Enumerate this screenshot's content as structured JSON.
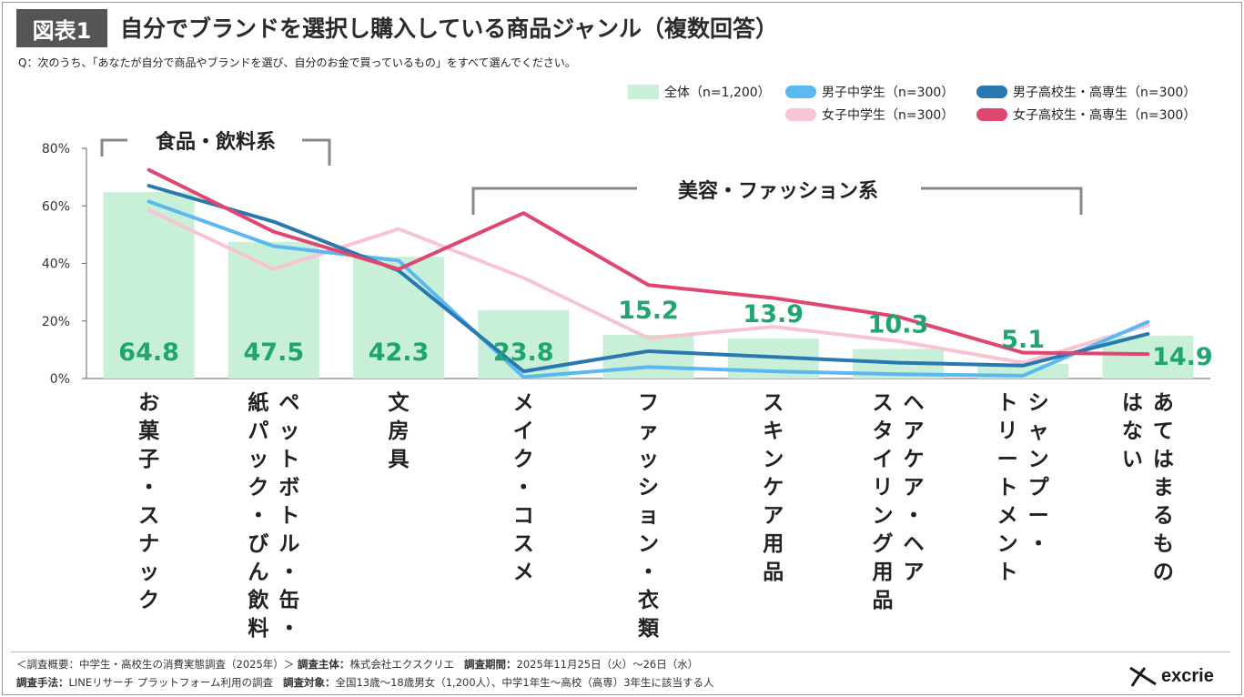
{
  "header": {
    "badge": "図表1",
    "title": "自分でブランドを選択し購入している商品ジャンル（複数回答）",
    "question": "Q：次のうち、「あなたが自分で商品やブランドを選び、自分のお金で買っているもの」をすべて選んでください。"
  },
  "groups": {
    "food": "食品・飲料系",
    "beauty": "美容・ファッション系"
  },
  "chart_data": {
    "type": "bar",
    "categories": [
      "お菓子・スナック",
      "ペットボトル・缶・紙パック・びん飲料",
      "文房具",
      "メイク・コスメ",
      "ファッション・衣類",
      "スキンケア用品",
      "ヘアケア・ヘアスタイリング用品",
      "シャンプー・トリートメント",
      "あてはまるものはない"
    ],
    "category_lines": [
      [
        "お菓子・スナック"
      ],
      [
        "ペットボトル・缶・",
        "紙パック・びん飲料"
      ],
      [
        "文房具"
      ],
      [
        "メイク・コスメ"
      ],
      [
        "ファッション・衣類"
      ],
      [
        "スキンケア用品"
      ],
      [
        "ヘアケア・ヘア",
        "スタイリング用品"
      ],
      [
        "シャンプー・",
        "トリートメント"
      ],
      [
        "あてはまるもの",
        "はない"
      ]
    ],
    "ylim": [
      0,
      80
    ],
    "yticks": [
      "0%",
      "20%",
      "40%",
      "60%",
      "80%"
    ],
    "bar_labels": [
      "64.8",
      "47.5",
      "42.3",
      "23.8",
      "15.2",
      "13.9",
      "10.3",
      "5.1",
      "14.9"
    ],
    "series": [
      {
        "name": "全体（n=1,200）",
        "kind": "bar",
        "color": "#c8f0d8",
        "values": [
          64.8,
          47.5,
          42.3,
          23.8,
          15.2,
          13.9,
          10.3,
          5.1,
          14.9
        ]
      },
      {
        "name": "男子中学生（n=300）",
        "kind": "line",
        "color": "#5bb8f0",
        "values": [
          61.5,
          46,
          41,
          0.5,
          4,
          2.5,
          1.5,
          1,
          19.7
        ]
      },
      {
        "name": "男子高校生・高専生（n=300）",
        "kind": "line",
        "color": "#2a78b0",
        "values": [
          67,
          54.5,
          37.5,
          2.5,
          9.5,
          7.5,
          5.5,
          4.5,
          15.5
        ]
      },
      {
        "name": "女子中学生（n=300）",
        "kind": "line",
        "color": "#f6c4d2",
        "values": [
          58.5,
          38,
          52,
          35,
          14,
          18,
          13,
          5.5,
          18.5
        ]
      },
      {
        "name": "女子高校生・高専生（n=300）",
        "kind": "line",
        "color": "#df4670",
        "values": [
          72.5,
          51,
          38,
          57.5,
          32.5,
          28,
          21.5,
          9,
          8.5
        ]
      }
    ],
    "legend_position": "top-right",
    "label_color": "#1fa56e"
  },
  "footer": {
    "line1_a": "＜調査概要：中学生・高校生の消費実態調査（2025年）＞",
    "line1_b_label": "調査主体：",
    "line1_b_value": "株式会社エクスクリエ",
    "line1_c_label": "調査期間：",
    "line1_c_value": "2025年11月25日（火）～26日（水）",
    "line2_a_label": "調査手法：",
    "line2_a_value": "LINEリサーチ プラットフォーム利用の調査",
    "line2_b_label": "調査対象：",
    "line2_b_value": "全国13歳～18歳男女（1,200人）、中学1年生～高校（高専）3年生に該当する人",
    "logo": "excrie"
  }
}
